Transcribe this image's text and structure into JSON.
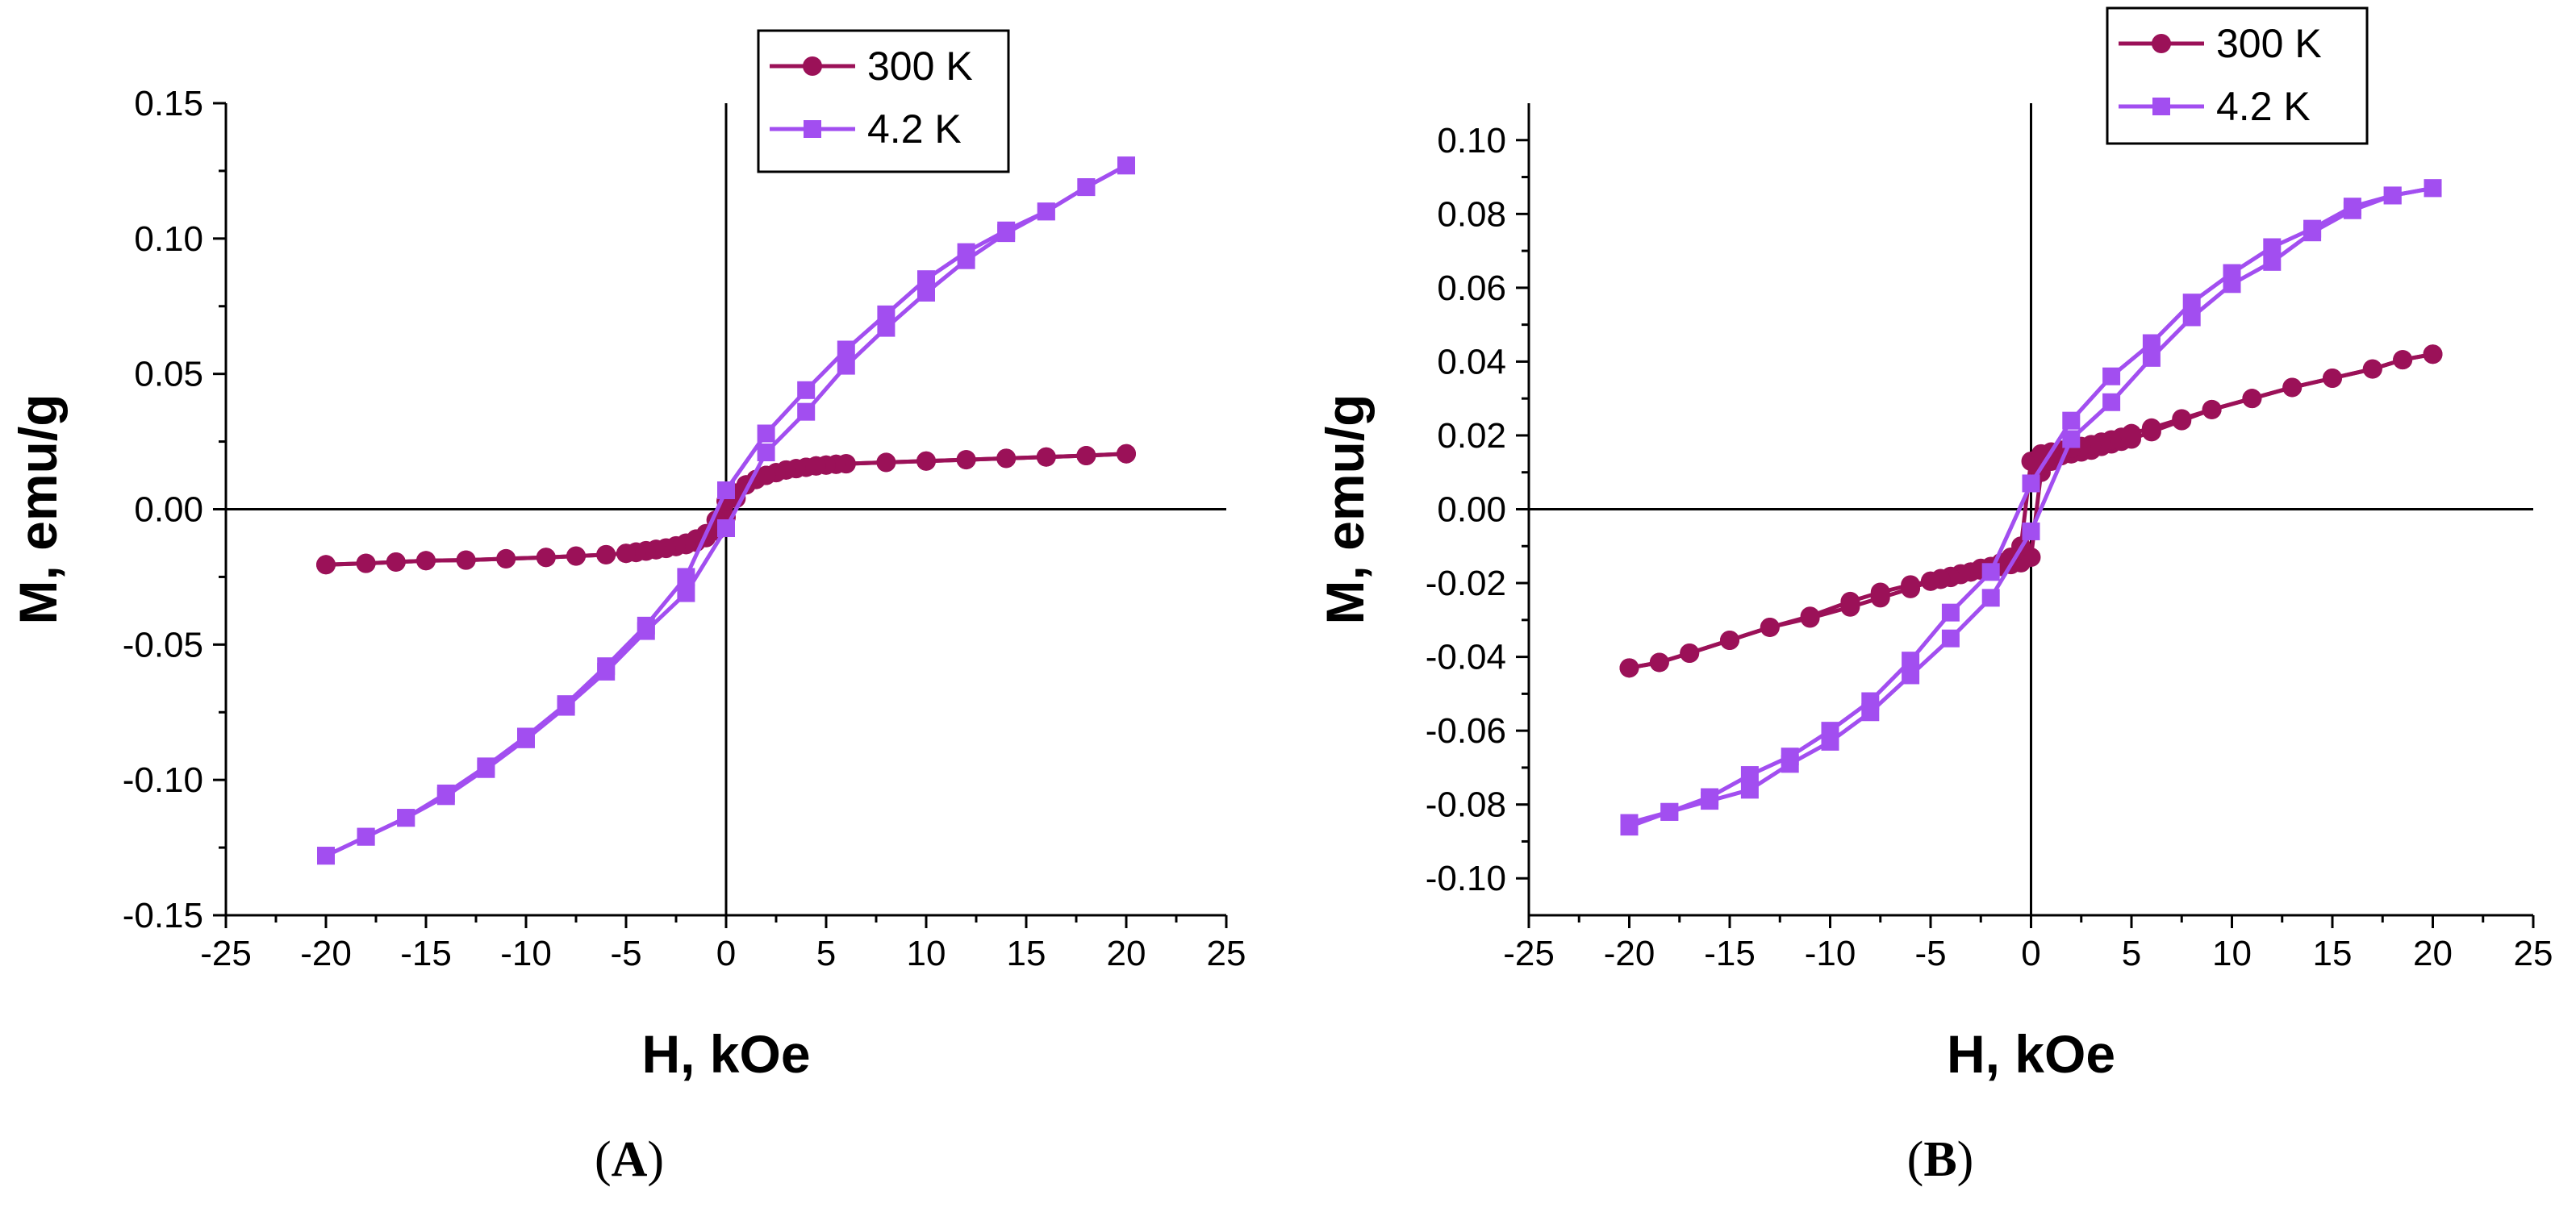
{
  "chart_data": [
    {
      "type": "line",
      "panel_label": "A",
      "xlabel": "H, kOe",
      "ylabel": "M, emu/g",
      "xlim": [
        -25,
        25
      ],
      "ylim": [
        -0.15,
        0.15
      ],
      "xticks": [
        -25,
        -20,
        -15,
        -10,
        -5,
        0,
        5,
        10,
        15,
        20,
        25
      ],
      "xtick_labels": [
        "-25",
        "-20",
        "-15",
        "-10",
        "-5",
        "0",
        "5",
        "10",
        "15",
        "20",
        "25"
      ],
      "yticks": [
        -0.15,
        -0.1,
        -0.05,
        0.0,
        0.05,
        0.1,
        0.15
      ],
      "ytick_labels": [
        "-0.15",
        "-0.10",
        "-0.05",
        "0.00",
        "0.05",
        "0.10",
        "0.15"
      ],
      "legend_position": "top-center",
      "series": [
        {
          "name": "300 K",
          "color": "#9b1158",
          "marker": "circle",
          "branches": [
            {
              "x": [
                -20,
                -18,
                -16.5,
                -15,
                -13,
                -11,
                -9,
                -7.5,
                -6,
                -5,
                -4.5,
                -4,
                -3.5,
                -3,
                -2.5,
                -2,
                -1.5,
                -1,
                -0.5,
                0,
                0.5,
                1,
                1.5,
                2,
                2.5,
                3,
                3.5,
                4,
                4.5,
                5,
                5.5,
                6,
                8,
                10,
                12,
                14,
                16,
                18,
                20
              ],
              "y": [
                -0.0205,
                -0.02,
                -0.0195,
                -0.019,
                -0.0188,
                -0.0183,
                -0.0178,
                -0.0173,
                -0.0168,
                -0.0163,
                -0.0158,
                -0.0153,
                -0.0148,
                -0.0143,
                -0.0138,
                -0.0131,
                -0.0122,
                -0.0105,
                -0.008,
                -0.003,
                0.004,
                0.009,
                0.011,
                0.0125,
                0.0135,
                0.0145,
                0.015,
                0.0155,
                0.016,
                0.0163,
                0.0166,
                0.0168,
                0.0173,
                0.0178,
                0.0183,
                0.0188,
                0.0193,
                0.0198,
                0.0205
              ]
            },
            {
              "x": [
                20,
                18,
                16,
                14,
                12,
                10,
                8,
                6,
                5.5,
                5,
                4.5,
                4,
                3.5,
                3,
                2.5,
                2,
                1.5,
                1,
                0.5,
                0,
                -0.5,
                -1,
                -1.5,
                -2,
                -2.5,
                -3,
                -3.5,
                -4,
                -4.5,
                -5,
                -6,
                -7.5,
                -9,
                -11,
                -13,
                -15,
                -16.5,
                -18,
                -20
              ],
              "y": [
                0.0205,
                0.0198,
                0.0193,
                0.0188,
                0.0183,
                0.0178,
                0.0173,
                0.0168,
                0.0166,
                0.0163,
                0.016,
                0.0155,
                0.015,
                0.0145,
                0.0135,
                0.0125,
                0.011,
                0.009,
                0.006,
                0.003,
                -0.004,
                -0.009,
                -0.011,
                -0.0125,
                -0.0135,
                -0.0145,
                -0.015,
                -0.0155,
                -0.016,
                -0.0163,
                -0.0168,
                -0.0173,
                -0.0178,
                -0.0183,
                -0.0188,
                -0.019,
                -0.0195,
                -0.02,
                -0.0205
              ]
            }
          ]
        },
        {
          "name": "4.2 K",
          "color": "#a24ef0",
          "marker": "square",
          "branches": [
            {
              "x": [
                -20,
                -18,
                -16,
                -14,
                -12,
                -10,
                -8,
                -6,
                -4,
                -2,
                0,
                2,
                4,
                6,
                8,
                10,
                12,
                14,
                16,
                18,
                20
              ],
              "y": [
                -0.128,
                -0.121,
                -0.114,
                -0.105,
                -0.095,
                -0.084,
                -0.072,
                -0.058,
                -0.043,
                -0.025,
                0.007,
                0.028,
                0.044,
                0.059,
                0.072,
                0.085,
                0.095,
                0.103,
                0.11,
                0.119,
                0.127
              ]
            },
            {
              "x": [
                20,
                18,
                16,
                14,
                12,
                10,
                8,
                6,
                4,
                2,
                0,
                -2,
                -4,
                -6,
                -8,
                -10,
                -12,
                -14,
                -16,
                -18,
                -20
              ],
              "y": [
                0.127,
                0.119,
                0.11,
                0.102,
                0.092,
                0.08,
                0.067,
                0.053,
                0.036,
                0.021,
                -0.007,
                -0.031,
                -0.045,
                -0.06,
                -0.073,
                -0.085,
                -0.096,
                -0.106,
                -0.114,
                -0.121,
                -0.128
              ]
            }
          ]
        }
      ]
    },
    {
      "type": "line",
      "panel_label": "B",
      "xlabel": "H, kOe",
      "ylabel": "M, emu/g",
      "xlim": [
        -25,
        25
      ],
      "ylim": [
        -0.11,
        0.11
      ],
      "xticks": [
        -25,
        -20,
        -15,
        -10,
        -5,
        0,
        5,
        10,
        15,
        20,
        25
      ],
      "xtick_labels": [
        "-25",
        "-20",
        "-15",
        "-10",
        "-5",
        "0",
        "5",
        "10",
        "15",
        "20",
        "25"
      ],
      "yticks": [
        -0.1,
        -0.08,
        -0.06,
        -0.04,
        -0.02,
        0.0,
        0.02,
        0.04,
        0.06,
        0.08,
        0.1
      ],
      "ytick_labels": [
        "-0.10",
        "-0.08",
        "-0.06",
        "-0.04",
        "-0.02",
        "0.00",
        "0.02",
        "0.04",
        "0.06",
        "0.08",
        "0.10"
      ],
      "legend_position": "top-center",
      "series": [
        {
          "name": "300 K",
          "color": "#9b1158",
          "marker": "circle",
          "branches": [
            {
              "x": [
                -20,
                -18.5,
                -17,
                -15,
                -13,
                -11,
                -9,
                -7.5,
                -6,
                -5,
                -4.5,
                -4,
                -3.5,
                -3,
                -2.5,
                -2,
                -1.5,
                -1,
                -0.5,
                0,
                0.5,
                1,
                1.5,
                2,
                2.5,
                3,
                3.5,
                4,
                4.5,
                5,
                6,
                7.5,
                9,
                11,
                13,
                15,
                17,
                18.5,
                20
              ],
              "y": [
                -0.043,
                -0.0415,
                -0.039,
                -0.0355,
                -0.032,
                -0.029,
                -0.025,
                -0.0225,
                -0.0205,
                -0.0195,
                -0.0188,
                -0.0182,
                -0.0177,
                -0.017,
                -0.0165,
                -0.016,
                -0.0155,
                -0.015,
                -0.0145,
                -0.013,
                0.01,
                0.013,
                0.0145,
                0.015,
                0.0155,
                0.016,
                0.017,
                0.0177,
                0.0184,
                0.019,
                0.021,
                0.024,
                0.027,
                0.03,
                0.033,
                0.0355,
                0.038,
                0.0405,
                0.042
              ]
            },
            {
              "x": [
                20,
                18.5,
                17,
                15,
                13,
                11,
                9,
                7.5,
                6,
                5,
                4.5,
                4,
                3.5,
                3,
                2.5,
                2,
                1.5,
                1,
                0.5,
                0,
                -0.5,
                -1,
                -1.5,
                -2,
                -2.5,
                -3,
                -3.5,
                -4,
                -4.5,
                -5,
                -6,
                -7.5,
                -9,
                -11,
                -13,
                -15,
                -17,
                -18.5,
                -20
              ],
              "y": [
                0.042,
                0.0405,
                0.038,
                0.0355,
                0.033,
                0.03,
                0.027,
                0.0245,
                0.022,
                0.0205,
                0.0195,
                0.0188,
                0.0182,
                0.0175,
                0.017,
                0.0165,
                0.016,
                0.0155,
                0.015,
                0.013,
                -0.01,
                -0.013,
                -0.0145,
                -0.0155,
                -0.016,
                -0.017,
                -0.0175,
                -0.0185,
                -0.019,
                -0.0195,
                -0.0215,
                -0.024,
                -0.0265,
                -0.0295,
                -0.032,
                -0.0355,
                -0.039,
                -0.0415,
                -0.043
              ]
            }
          ]
        },
        {
          "name": "4.2 K",
          "color": "#a24ef0",
          "marker": "square",
          "branches": [
            {
              "x": [
                -20,
                -18,
                -16,
                -14,
                -12,
                -10,
                -8,
                -6,
                -4,
                -2,
                0,
                2,
                4,
                6,
                8,
                10,
                12,
                14,
                16,
                18,
                20
              ],
              "y": [
                -0.085,
                -0.082,
                -0.078,
                -0.072,
                -0.067,
                -0.06,
                -0.052,
                -0.041,
                -0.028,
                -0.017,
                0.007,
                0.024,
                0.036,
                0.045,
                0.056,
                0.064,
                0.071,
                0.076,
                0.082,
                0.085,
                0.087
              ]
            },
            {
              "x": [
                20,
                18,
                16,
                14,
                12,
                10,
                8,
                6,
                4,
                2,
                0,
                -2,
                -4,
                -6,
                -8,
                -10,
                -12,
                -14,
                -16,
                -18,
                -20
              ],
              "y": [
                0.087,
                0.085,
                0.081,
                0.075,
                0.067,
                0.061,
                0.052,
                0.041,
                0.029,
                0.019,
                -0.006,
                -0.024,
                -0.035,
                -0.045,
                -0.055,
                -0.063,
                -0.069,
                -0.076,
                -0.079,
                -0.082,
                -0.086
              ]
            }
          ]
        }
      ]
    }
  ],
  "panels": [
    {
      "label_open": "(",
      "label": "A",
      "label_close": ")"
    },
    {
      "label_open": "(",
      "label": "B",
      "label_close": ")"
    }
  ]
}
